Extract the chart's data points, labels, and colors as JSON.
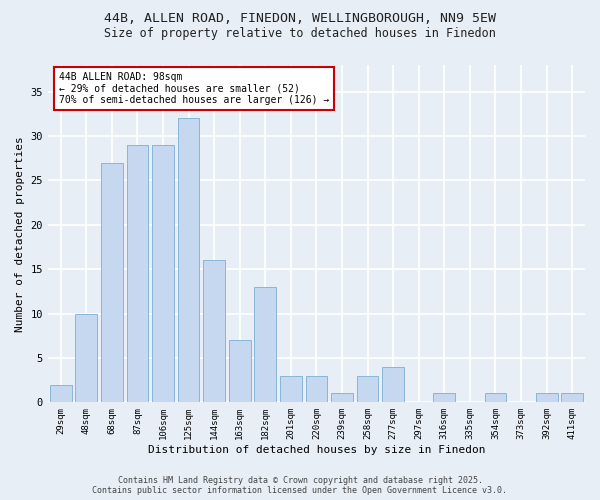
{
  "title1": "44B, ALLEN ROAD, FINEDON, WELLINGBOROUGH, NN9 5EW",
  "title2": "Size of property relative to detached houses in Finedon",
  "xlabel": "Distribution of detached houses by size in Finedon",
  "ylabel": "Number of detached properties",
  "categories": [
    "29sqm",
    "48sqm",
    "68sqm",
    "87sqm",
    "106sqm",
    "125sqm",
    "144sqm",
    "163sqm",
    "182sqm",
    "201sqm",
    "220sqm",
    "239sqm",
    "258sqm",
    "277sqm",
    "297sqm",
    "316sqm",
    "335sqm",
    "354sqm",
    "373sqm",
    "392sqm",
    "411sqm"
  ],
  "values": [
    2,
    10,
    27,
    29,
    29,
    32,
    16,
    7,
    13,
    3,
    3,
    1,
    3,
    4,
    0,
    1,
    0,
    1,
    0,
    1,
    1
  ],
  "bar_color": "#c5d8f0",
  "bar_edge_color": "#7bafd4",
  "annotation_line1": "44B ALLEN ROAD: 98sqm",
  "annotation_line2": "← 29% of detached houses are smaller (52)",
  "annotation_line3": "70% of semi-detached houses are larger (126) →",
  "annotation_box_facecolor": "#ffffff",
  "annotation_box_edgecolor": "#cc0000",
  "bg_color": "#e8eef5",
  "grid_color": "#ffffff",
  "footer1": "Contains HM Land Registry data © Crown copyright and database right 2025.",
  "footer2": "Contains public sector information licensed under the Open Government Licence v3.0.",
  "ylim": [
    0,
    38
  ],
  "yticks": [
    0,
    5,
    10,
    15,
    20,
    25,
    30,
    35
  ]
}
